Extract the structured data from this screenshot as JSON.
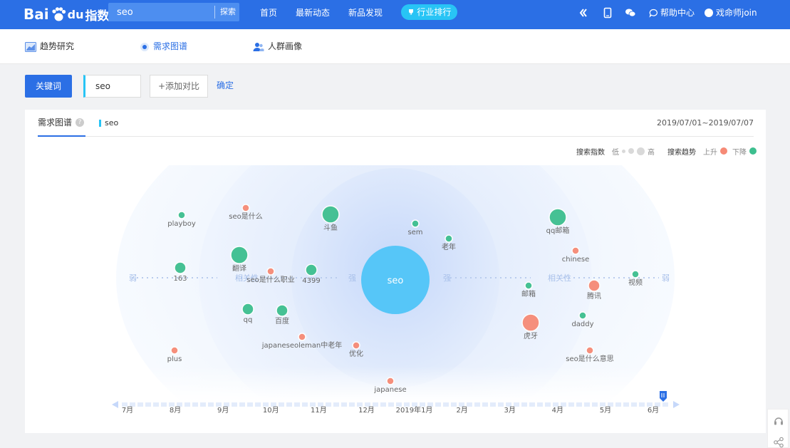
{
  "topbar": {
    "logo_bai": "Bai",
    "logo_du": "du",
    "logo_zhishu": "指数",
    "search_value": "seo",
    "search_button": "探索",
    "nav": [
      "首页",
      "最新动态",
      "新品发现"
    ],
    "rank_label": "行业排行",
    "help_label": "帮助中心",
    "user_name": "戏命师join"
  },
  "subnav": [
    {
      "label": "趋势研究",
      "icon": "trend-chart-icon",
      "active": false
    },
    {
      "label": "需求图谱",
      "icon": "radar-dot-icon",
      "active": true
    },
    {
      "label": "人群画像",
      "icon": "people-icon",
      "active": false
    }
  ],
  "keyword_bar": {
    "keyword_button": "关键词",
    "keyword_value": "seo",
    "add_compare": "+添加对比",
    "confirm": "确定"
  },
  "panel": {
    "tab_title": "需求图谱",
    "help_glyph": "?",
    "tab_keyword": "seo",
    "date_range": "2019/07/01~2019/07/07",
    "legend": {
      "search_index": "搜索指数",
      "low": "低",
      "high": "高",
      "search_trend": "搜索趋势",
      "up": "上升",
      "down": "下降",
      "up_color": "#f68a76",
      "down_color": "#3dbf8f"
    },
    "axis_labels": {
      "weak": "弱",
      "relevance": "相关性",
      "strong": "强"
    },
    "center_node": "seo",
    "nodes": [
      {
        "label": "playboy",
        "trend": "down",
        "size": 1
      },
      {
        "label": "seo是什么",
        "trend": "up",
        "size": 1
      },
      {
        "label": "斗鱼",
        "trend": "down",
        "size": 3
      },
      {
        "label": "sem",
        "trend": "down",
        "size": 1
      },
      {
        "label": "老年",
        "trend": "down",
        "size": 1
      },
      {
        "label": "qq邮箱",
        "trend": "down",
        "size": 3
      },
      {
        "label": "翻译",
        "trend": "down",
        "size": 3
      },
      {
        "label": "chinese",
        "trend": "up",
        "size": 1
      },
      {
        "label": "163",
        "trend": "down",
        "size": 2
      },
      {
        "label": "seo是什么职业",
        "trend": "up",
        "size": 1
      },
      {
        "label": "4399",
        "trend": "down",
        "size": 2
      },
      {
        "label": "视频",
        "trend": "down",
        "size": 1
      },
      {
        "label": "邮箱",
        "trend": "down",
        "size": 1
      },
      {
        "label": "腾讯",
        "trend": "up",
        "size": 2
      },
      {
        "label": "qq",
        "trend": "down",
        "size": 2
      },
      {
        "label": "百度",
        "trend": "down",
        "size": 2
      },
      {
        "label": "daddy",
        "trend": "down",
        "size": 1
      },
      {
        "label": "虎牙",
        "trend": "up",
        "size": 3
      },
      {
        "label": "japaneseoleman中老年",
        "trend": "up",
        "size": 1
      },
      {
        "label": "优化",
        "trend": "up",
        "size": 1
      },
      {
        "label": "plus",
        "trend": "up",
        "size": 1
      },
      {
        "label": "seo是什么意思",
        "trend": "up",
        "size": 1
      },
      {
        "label": "japanese",
        "trend": "up",
        "size": 1
      }
    ],
    "timeline_months": [
      "7月",
      "8月",
      "9月",
      "10月",
      "11月",
      "12月",
      "2019年1月",
      "2月",
      "3月",
      "4月",
      "5月",
      "6月"
    ],
    "timeline_selected": "6月"
  }
}
